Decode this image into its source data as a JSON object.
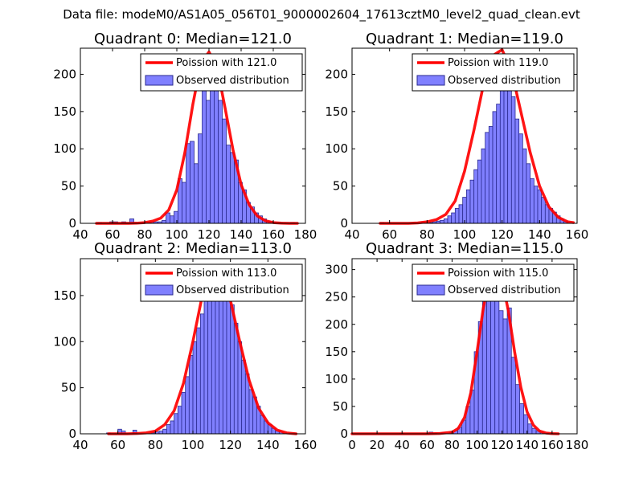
{
  "suptitle": "Data file: modeM0/AS1A05_056T01_9000002604_17613cztM0_level2_quad_clean.evt",
  "colors": {
    "bar_fill": "#8080ff",
    "bar_edge": "#2a2a8f",
    "poisson_line": "#ff0000",
    "axes": "#000000"
  },
  "chart_data": [
    {
      "type": "bar",
      "title": "Quadrant 0: Median=121.0",
      "xlim": [
        40,
        180
      ],
      "ylim": [
        0,
        235
      ],
      "xticks": [
        40,
        60,
        80,
        100,
        120,
        140,
        160,
        180
      ],
      "yticks": [
        0,
        50,
        100,
        150,
        200
      ],
      "median": 121,
      "bin_width": 2.5,
      "legend": [
        "Poission with 121.0",
        "Observed distribution"
      ],
      "histogram": {
        "bin_centers": [
          52,
          54.5,
          57,
          59.5,
          62,
          64.5,
          67,
          69.5,
          72,
          74.5,
          77,
          79.5,
          82,
          84.5,
          87,
          89.5,
          92,
          94.5,
          97,
          99.5,
          102,
          104.5,
          107,
          109.5,
          112,
          114.5,
          117,
          119.5,
          122,
          124.5,
          127,
          129.5,
          132,
          134.5,
          137,
          139.5,
          142,
          144.5,
          147,
          149.5,
          152,
          154.5,
          157,
          159.5,
          162,
          164.5,
          167,
          169.5,
          172
        ],
        "counts": [
          1,
          0,
          0,
          2,
          2,
          0,
          2,
          1,
          6,
          0,
          0,
          1,
          1,
          2,
          2,
          2,
          4,
          14,
          10,
          16,
          60,
          55,
          107,
          110,
          80,
          120,
          185,
          165,
          195,
          180,
          165,
          140,
          105,
          95,
          85,
          55,
          45,
          28,
          22,
          14,
          10,
          6,
          3,
          2,
          1,
          1,
          0,
          0,
          1
        ]
      },
      "poisson": {
        "x": [
          50,
          55,
          60,
          65,
          70,
          75,
          80,
          85,
          90,
          95,
          100,
          105,
          110,
          115,
          120,
          125,
          130,
          135,
          140,
          145,
          150,
          155,
          160,
          165,
          170,
          175
        ],
        "y": [
          0,
          0,
          0,
          0,
          0,
          0.2,
          1,
          3,
          7,
          18,
          45,
          95,
          160,
          215,
          230,
          210,
          155,
          98,
          52,
          25,
          10,
          3.5,
          1,
          0.3,
          0,
          0
        ]
      }
    },
    {
      "type": "bar",
      "title": "Quadrant 1: Median=119.0",
      "xlim": [
        40,
        160
      ],
      "ylim": [
        0,
        235
      ],
      "xticks": [
        40,
        60,
        80,
        100,
        120,
        140,
        160
      ],
      "yticks": [
        0,
        50,
        100,
        150,
        200
      ],
      "median": 119,
      "bin_width": 2,
      "legend": [
        "Poission with 119.0",
        "Observed distribution"
      ],
      "histogram": {
        "bin_centers": [
          56,
          58,
          60,
          62,
          64,
          66,
          68,
          70,
          72,
          74,
          76,
          78,
          80,
          82,
          84,
          86,
          88,
          90,
          92,
          94,
          96,
          98,
          100,
          102,
          104,
          106,
          108,
          110,
          112,
          114,
          116,
          118,
          120,
          122,
          124,
          126,
          128,
          130,
          132,
          134,
          136,
          138,
          140,
          142,
          144,
          146,
          148,
          150,
          152,
          154
        ],
        "counts": [
          1,
          0,
          0,
          0,
          0,
          0,
          0,
          0,
          0,
          0,
          0,
          1,
          0,
          1,
          2,
          3,
          4,
          6,
          10,
          14,
          20,
          25,
          35,
          45,
          58,
          72,
          85,
          100,
          122,
          130,
          150,
          160,
          180,
          195,
          198,
          170,
          140,
          120,
          100,
          80,
          60,
          50,
          45,
          35,
          25,
          20,
          15,
          10,
          6,
          3
        ]
      },
      "poisson": {
        "x": [
          55,
          60,
          65,
          70,
          75,
          80,
          85,
          90,
          95,
          100,
          105,
          110,
          115,
          120,
          125,
          130,
          135,
          140,
          145,
          150,
          155,
          158
        ],
        "y": [
          0,
          0,
          0,
          0,
          0.5,
          2,
          5,
          12,
          30,
          70,
          125,
          185,
          225,
          233,
          205,
          150,
          95,
          50,
          22,
          8,
          2,
          1
        ]
      }
    },
    {
      "type": "bar",
      "title": "Quadrant 2: Median=113.0",
      "xlim": [
        40,
        160
      ],
      "ylim": [
        0,
        190
      ],
      "xticks": [
        40,
        60,
        80,
        100,
        120,
        140,
        160
      ],
      "yticks": [
        0,
        50,
        100,
        150
      ],
      "median": 113,
      "bin_width": 2,
      "legend": [
        "Poission with 113.0",
        "Observed distribution"
      ],
      "histogram": {
        "bin_centers": [
          55,
          57,
          59,
          61,
          63,
          65,
          67,
          69,
          71,
          73,
          75,
          77,
          79,
          81,
          83,
          85,
          87,
          89,
          91,
          93,
          95,
          97,
          99,
          101,
          103,
          105,
          107,
          109,
          111,
          113,
          115,
          117,
          119,
          121,
          123,
          125,
          127,
          129,
          131,
          133,
          135,
          137,
          139,
          141,
          143,
          145,
          147,
          149
        ],
        "counts": [
          1,
          0,
          0,
          5,
          3,
          0,
          0,
          4,
          0,
          0,
          0,
          0,
          1,
          2,
          3,
          5,
          10,
          14,
          22,
          30,
          45,
          62,
          85,
          100,
          115,
          130,
          145,
          165,
          175,
          170,
          165,
          155,
          145,
          140,
          120,
          100,
          80,
          65,
          48,
          40,
          30,
          20,
          14,
          10,
          6,
          3,
          2,
          1
        ]
      },
      "poisson": {
        "x": [
          55,
          60,
          65,
          70,
          75,
          80,
          85,
          90,
          95,
          100,
          105,
          110,
          115,
          120,
          125,
          130,
          135,
          140,
          145,
          150,
          155
        ],
        "y": [
          0,
          0,
          0,
          0.3,
          1,
          3,
          10,
          25,
          55,
          100,
          150,
          180,
          178,
          145,
          100,
          58,
          28,
          12,
          4,
          1,
          0
        ]
      }
    },
    {
      "type": "bar",
      "title": "Quadrant 3: Median=115.0",
      "xlim": [
        0,
        180
      ],
      "ylim": [
        0,
        320
      ],
      "xticks": [
        0,
        20,
        40,
        60,
        80,
        100,
        120,
        140,
        160,
        180
      ],
      "yticks": [
        0,
        50,
        100,
        150,
        200,
        250,
        300
      ],
      "median": 115,
      "bin_width": 3.3,
      "legend": [
        "Poission with 115.0",
        "Observed distribution"
      ],
      "histogram": {
        "bin_centers": [
          40,
          43.3,
          46.6,
          49.9,
          53.2,
          56.5,
          59.8,
          63.1,
          66.4,
          69.7,
          73,
          76.3,
          79.6,
          82.9,
          86.2,
          89.5,
          92.8,
          96.1,
          99.4,
          102.7,
          106,
          109.3,
          112.6,
          115.9,
          119.2,
          122.5,
          125.8,
          129.1,
          132.4,
          135.7,
          139,
          142.3,
          145.6,
          148.9,
          152.2,
          155.5
        ],
        "counts": [
          1,
          0,
          0,
          0,
          0,
          0,
          0,
          3,
          1,
          0,
          2,
          1,
          3,
          5,
          12,
          25,
          50,
          80,
          150,
          205,
          245,
          250,
          270,
          280,
          225,
          210,
          230,
          140,
          90,
          55,
          35,
          18,
          10,
          5,
          3,
          1
        ]
      },
      "poisson": {
        "x": [
          0,
          20,
          40,
          60,
          70,
          80,
          85,
          90,
          95,
          100,
          105,
          110,
          115,
          120,
          125,
          130,
          135,
          140,
          145,
          150,
          155,
          160,
          165
        ],
        "y": [
          0,
          0,
          0,
          0,
          0.5,
          3,
          10,
          30,
          75,
          150,
          230,
          285,
          300,
          280,
          225,
          150,
          85,
          40,
          16,
          5,
          1.5,
          0.3,
          0
        ]
      }
    }
  ]
}
